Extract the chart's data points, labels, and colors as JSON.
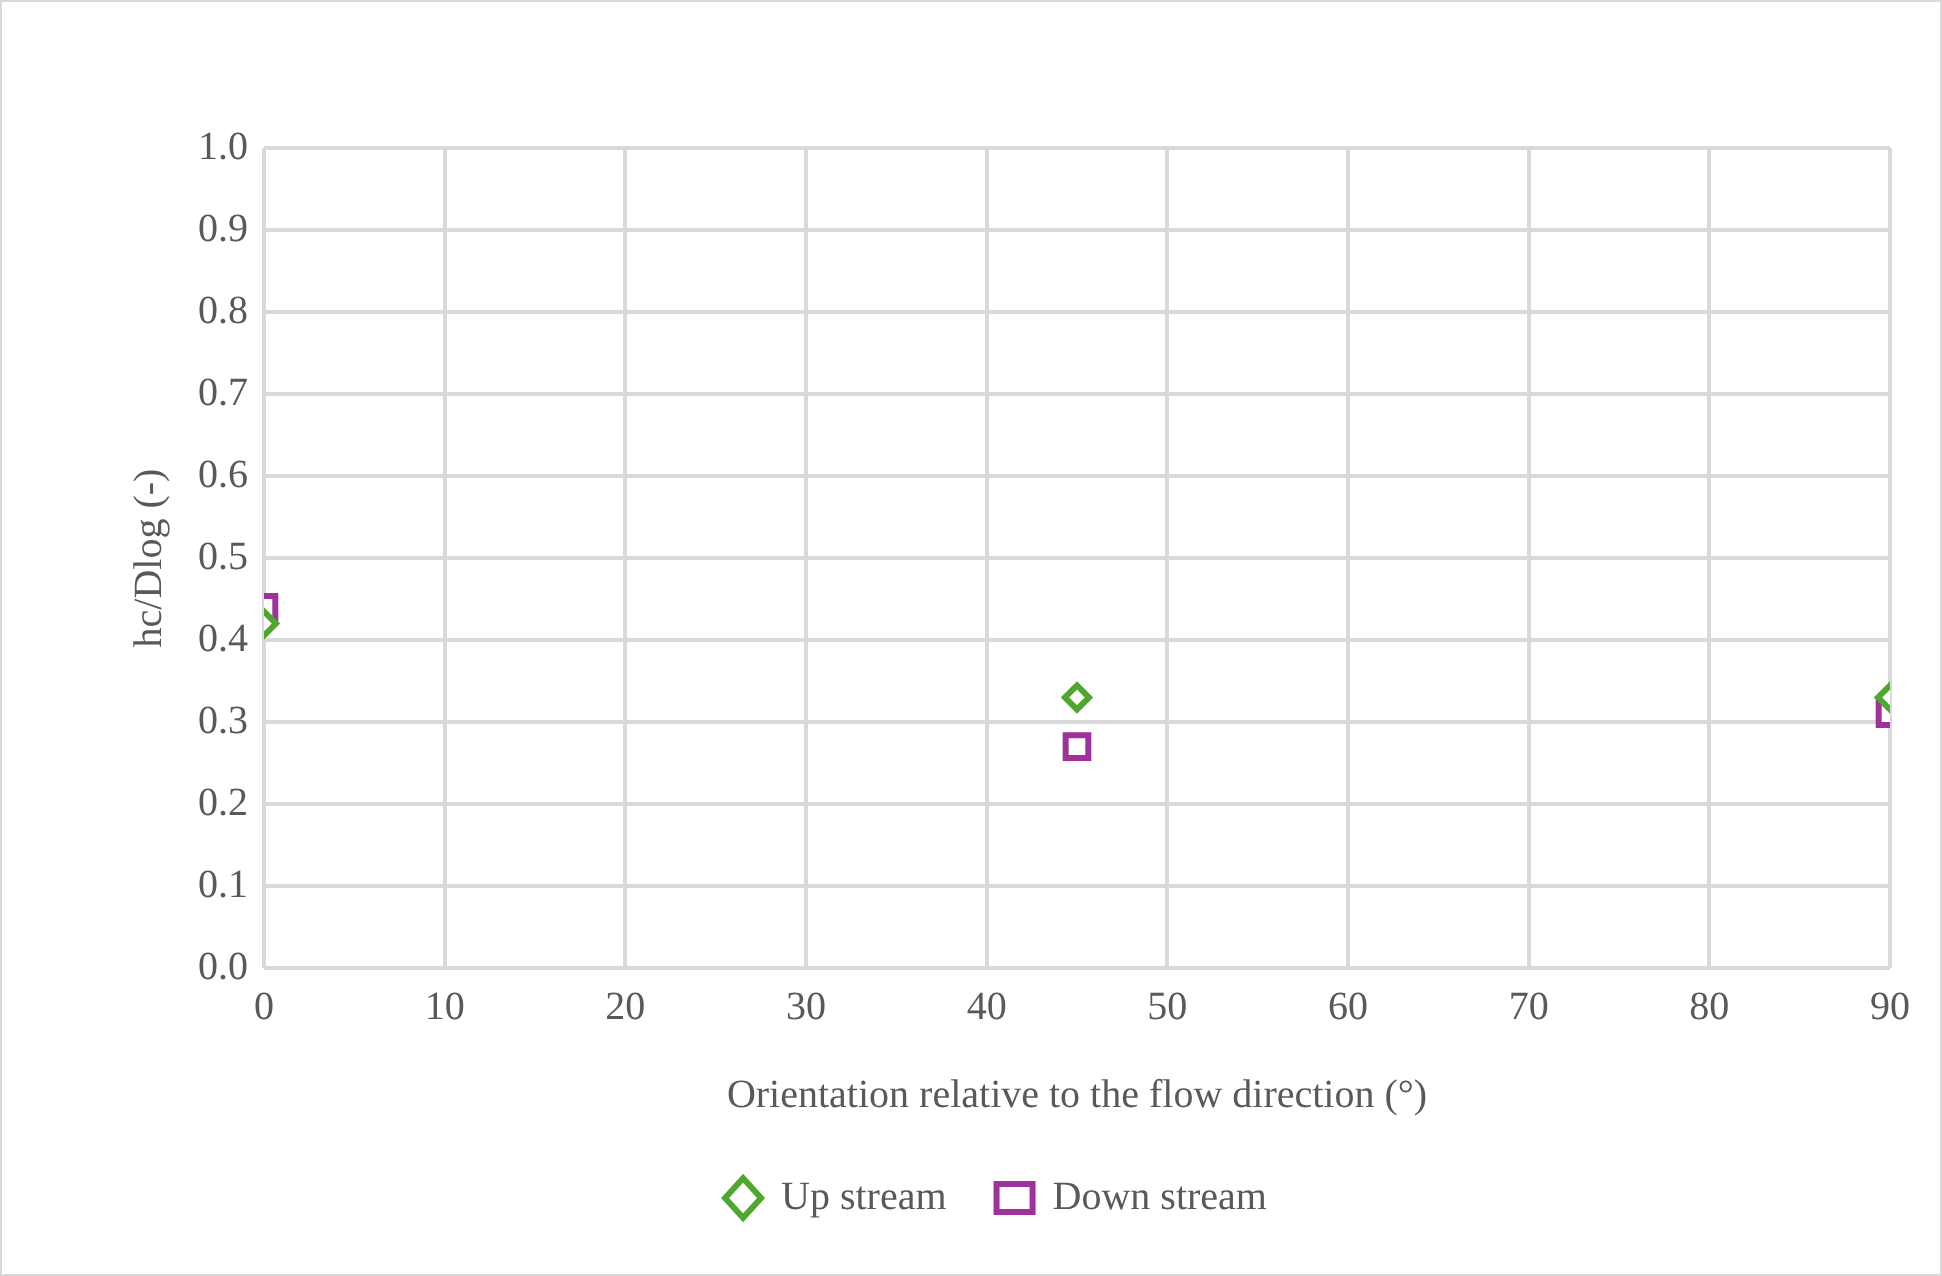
{
  "chart_data": {
    "type": "scatter",
    "xlabel": "Orientation relative to the flow direction (°)",
    "ylabel": "hc/Dlog (-)",
    "x": [
      0,
      45,
      90
    ],
    "series": [
      {
        "name": "Up stream",
        "color": "#4ea72e",
        "marker": "diamond",
        "values": [
          0.42,
          0.33,
          0.33
        ]
      },
      {
        "name": "Down stream",
        "color": "#a0309a",
        "marker": "square",
        "values": [
          0.44,
          0.27,
          0.31
        ]
      }
    ],
    "xlim": [
      0,
      90
    ],
    "xticks": [
      0,
      10,
      20,
      30,
      40,
      50,
      60,
      70,
      80,
      90
    ],
    "ylim": [
      0,
      1
    ],
    "yticks": [
      {
        "value": 0,
        "label": "0.0"
      },
      0.1,
      0.2,
      0.3,
      0.4,
      0.5,
      0.6,
      0.7,
      0.8,
      0.9,
      {
        "value": 1,
        "label": "1.0"
      }
    ],
    "grid": true,
    "legend": "bottom"
  }
}
